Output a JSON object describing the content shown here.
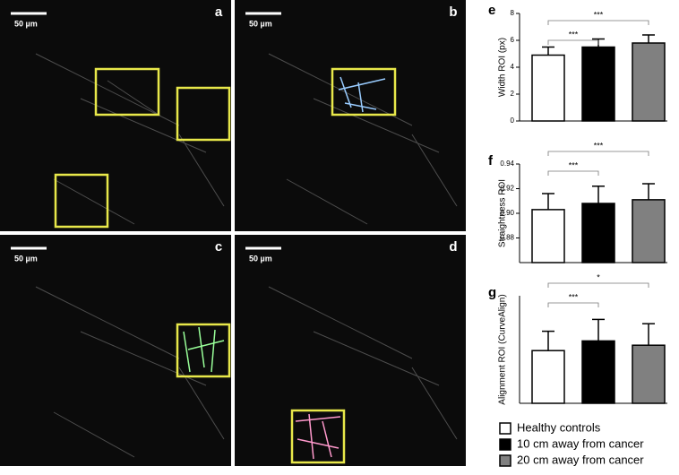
{
  "panels": [
    {
      "label": "a",
      "scale_bar": "50 µm"
    },
    {
      "label": "b",
      "scale_bar": "50 µm"
    },
    {
      "label": "c",
      "scale_bar": "50 µm"
    },
    {
      "label": "d",
      "scale_bar": "50 µm"
    }
  ],
  "chart_data": [
    {
      "type": "bar",
      "panel": "e",
      "ylabel": "Width ROI (px)",
      "values": [
        4.9,
        5.5,
        5.8
      ],
      "errors": [
        0.6,
        0.6,
        0.6
      ],
      "ylim": [
        0,
        8
      ],
      "yticks": [
        0,
        2,
        4,
        6,
        8
      ],
      "annotations": [
        "***",
        "***"
      ]
    },
    {
      "type": "bar",
      "panel": "f",
      "ylabel": "Straightness ROI",
      "values": [
        0.903,
        0.908,
        0.911
      ],
      "errors": [
        0.013,
        0.014,
        0.013
      ],
      "ylim": [
        0.86,
        0.94
      ],
      "yticks": [
        0.88,
        {
          "value": 0.9,
          "label": "0.90"
        },
        0.92,
        0.94
      ],
      "annotations": [
        "***",
        "***"
      ]
    },
    {
      "type": "bar",
      "panel": "g",
      "ylabel": "Alignment ROI (CurveAlign)",
      "values": [
        0.49,
        0.58,
        0.54
      ],
      "errors": [
        0.18,
        0.2,
        0.2
      ],
      "ylim": [
        0,
        1
      ],
      "annotations": [
        "***",
        "*"
      ]
    }
  ],
  "legend": {
    "names": [
      "Healthy controls",
      "10 cm away from cancer",
      "20 cm away from cancer"
    ],
    "colors": [
      "#ffffff",
      "#000000",
      "#808080"
    ]
  }
}
